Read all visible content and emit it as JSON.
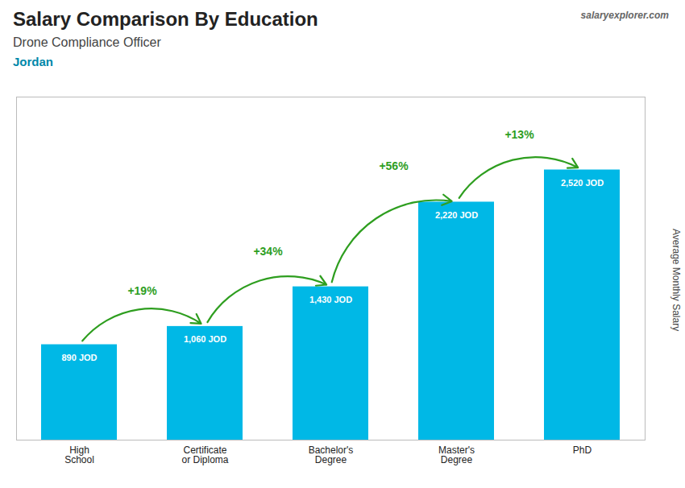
{
  "chart_data": {
    "type": "bar",
    "title": "Salary Comparison By Education",
    "subtitle": "Drone Compliance Officer",
    "ylabel": "Average Monthly Salary",
    "categories": [
      "High\nSchool",
      "Certificate\nor Diploma",
      "Bachelor's\nDegree",
      "Master's\nDegree",
      "PhD"
    ],
    "values": [
      890,
      1060,
      1430,
      2220,
      2520
    ],
    "value_labels": [
      "890 JOD",
      "1,060 JOD",
      "1,430 JOD",
      "2,220 JOD",
      "2,520 JOD"
    ],
    "data_labels": true,
    "color": "#00b8e6",
    "ylim": [
      0,
      3200
    ],
    "tick_labels": "x",
    "annotations": [
      {
        "text": "Jordan"
      },
      {
        "text": "salaryexplorer.com"
      },
      {
        "text": "+19%",
        "from": "High\nSchool",
        "to": "Certificate\nor Diploma"
      },
      {
        "text": "+34%",
        "from": "Certificate\nor Diploma",
        "to": "Bachelor's\nDegree"
      },
      {
        "text": "+56%",
        "from": "Bachelor's\nDegree",
        "to": "Master's\nDegree"
      },
      {
        "text": "+13%",
        "from": "Master's\nDegree",
        "to": "PhD"
      }
    ]
  }
}
